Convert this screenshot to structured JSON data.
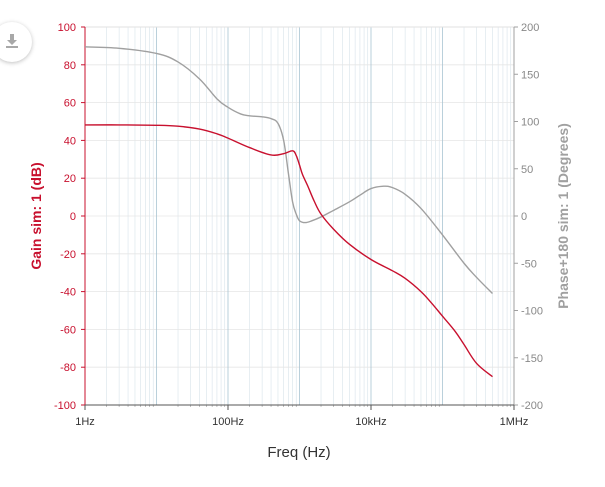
{
  "chart_data": {
    "type": "line",
    "title": "",
    "xlabel": "Freq (Hz)",
    "ylabel_left": "Gain sim: 1 (dB)",
    "ylabel_right": "Phase+180 sim: 1 (Degrees)",
    "x_scale": "log",
    "xlim": [
      1,
      1000000
    ],
    "ylim_left": [
      -100,
      100
    ],
    "ylim_right": [
      -200,
      200
    ],
    "x_tick_labels": [
      "1Hz",
      "100Hz",
      "10kHz",
      "1MHz"
    ],
    "x_tick_values": [
      1,
      100,
      10000,
      1000000
    ],
    "y_left_ticks": [
      100,
      80,
      60,
      40,
      20,
      0,
      -20,
      -40,
      -60,
      -80,
      -100
    ],
    "y_right_ticks": [
      200,
      150,
      100,
      50,
      0,
      -50,
      -100,
      -150,
      -200
    ],
    "grid": true,
    "colors": {
      "gain": "#c8102e",
      "phase": "#a0a0a0",
      "axis_grid": "#d7e3ea",
      "decade_line": "#a9c4d2"
    },
    "series": [
      {
        "name": "Gain sim: 1",
        "axis": "left",
        "x": [
          1,
          3,
          10,
          20,
          40,
          70,
          100,
          200,
          400,
          600,
          800,
          900,
          1000,
          1100,
          1300,
          1600,
          2000,
          3000,
          5000,
          10000,
          20000,
          30000,
          50000,
          70000,
          100000,
          150000,
          200000,
          300000,
          500000
        ],
        "values": [
          48.2,
          48.2,
          48,
          47.5,
          46,
          43.5,
          41.2,
          36.2,
          32.3,
          33,
          34.5,
          32,
          27,
          22,
          16,
          8,
          1,
          -7,
          -15,
          -23,
          -29,
          -33,
          -40,
          -46,
          -53,
          -61,
          -68,
          -78,
          -85
        ]
      },
      {
        "name": "Phase+180 sim: 1",
        "axis": "right",
        "x": [
          1,
          3,
          10,
          20,
          40,
          70,
          100,
          150,
          200,
          300,
          400,
          500,
          600,
          700,
          800,
          900,
          1000,
          1200,
          1500,
          2000,
          3000,
          5000,
          7000,
          10000,
          15000,
          20000,
          30000,
          50000,
          100000,
          200000,
          300000,
          500000
        ],
        "values": [
          179,
          177.5,
          172,
          163,
          145,
          124,
          115,
          108,
          106,
          105,
          103,
          98,
          80,
          45,
          15,
          2,
          -5,
          -7,
          -5,
          -1,
          6,
          15,
          22,
          29,
          31.5,
          30,
          23,
          8,
          -20,
          -50,
          -65,
          -82
        ]
      }
    ]
  }
}
